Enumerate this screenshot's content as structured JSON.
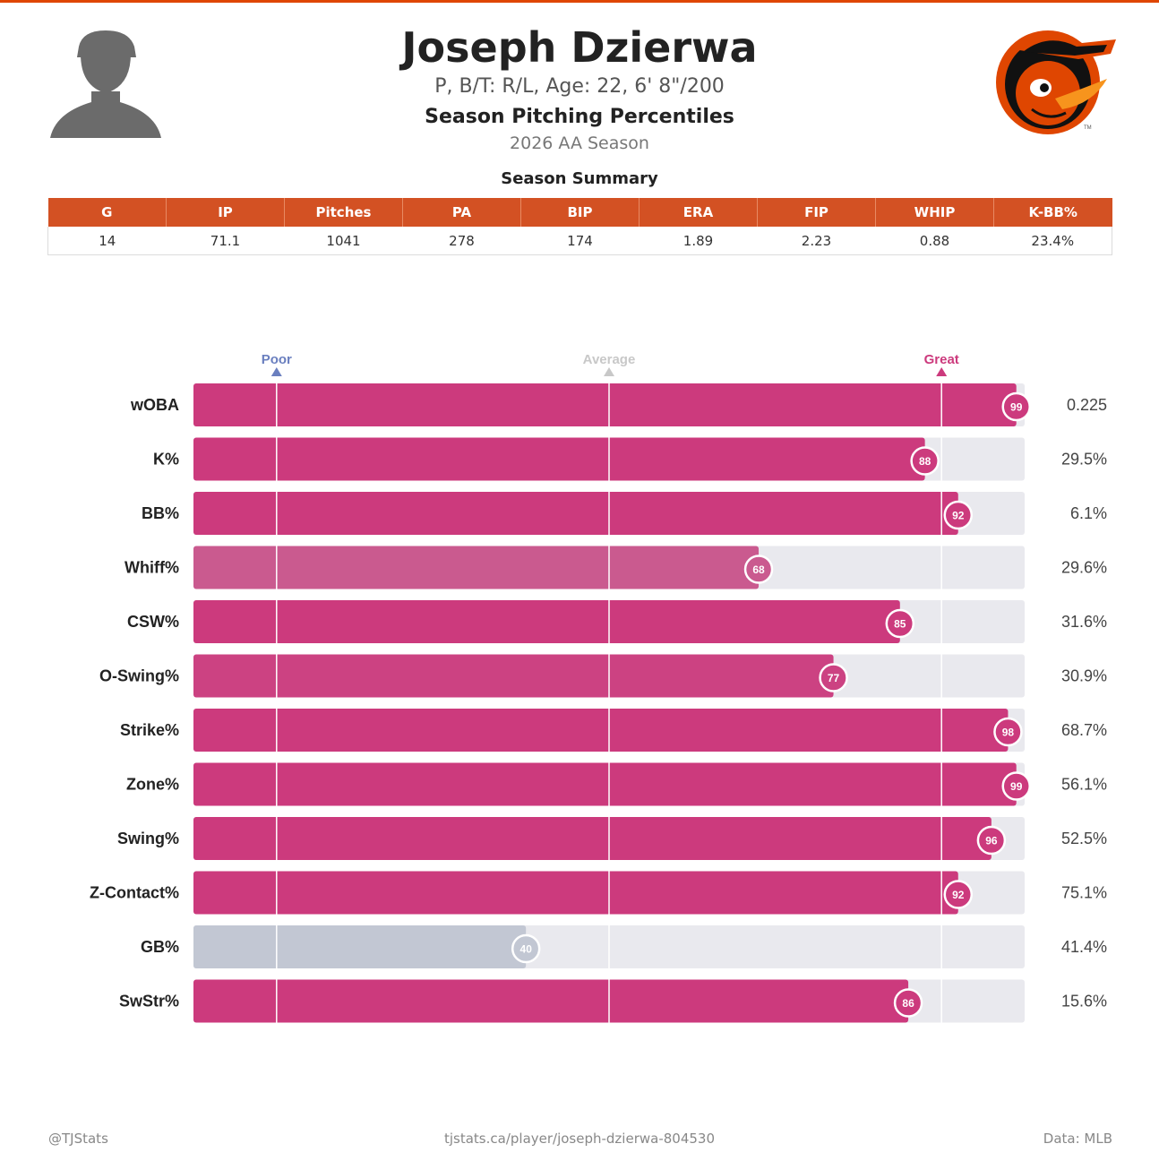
{
  "header": {
    "name": "Joseph Dzierwa",
    "bio": "P, B/T: R/L, Age: 22, 6' 8\"/200",
    "subtitle": "Season Pitching Percentiles",
    "season": "2026 AA Season"
  },
  "summary": {
    "title": "Season Summary",
    "columns": [
      "G",
      "IP",
      "Pitches",
      "PA",
      "BIP",
      "ERA",
      "FIP",
      "WHIP",
      "K-BB%"
    ],
    "values": [
      "14",
      "71.1",
      "1041",
      "278",
      "174",
      "1.89",
      "2.23",
      "0.88",
      "23.4%"
    ],
    "header_color": "#d35123"
  },
  "chart_data": {
    "type": "bar",
    "orientation": "horizontal",
    "xlim": [
      0,
      100
    ],
    "markers": [
      {
        "label": "Poor",
        "percentile": 10,
        "color": "#6a7fbf"
      },
      {
        "label": "Average",
        "percentile": 50,
        "color": "#c8c8c8"
      },
      {
        "label": "Great",
        "percentile": 90,
        "color": "#cc3a7d"
      }
    ],
    "categories": [
      "wOBA",
      "K%",
      "BB%",
      "Whiff%",
      "CSW%",
      "O-Swing%",
      "Strike%",
      "Zone%",
      "Swing%",
      "Z-Contact%",
      "GB%",
      "SwStr%"
    ],
    "percentiles": [
      99,
      88,
      92,
      68,
      85,
      77,
      98,
      99,
      96,
      92,
      40,
      86
    ],
    "stat_values": [
      "0.225",
      "29.5%",
      "6.1%",
      "29.6%",
      "31.6%",
      "30.9%",
      "68.7%",
      "56.1%",
      "52.5%",
      "75.1%",
      "41.4%",
      "15.6%"
    ],
    "colors": {
      "high": "#cc3a7d",
      "low": "#b0b8c8",
      "track": "#e9e9ee"
    }
  },
  "footer": {
    "left": "@TJStats",
    "center": "tjstats.ca/player/joseph-dzierwa-804530",
    "right": "Data: MLB"
  },
  "icons": {
    "headshot": "player-silhouette-icon",
    "logo": "orioles-logo"
  }
}
